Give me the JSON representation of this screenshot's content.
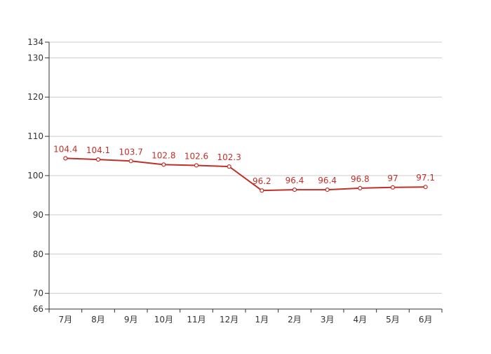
{
  "chart_data": {
    "type": "line",
    "categories": [
      "7月",
      "8月",
      "9月",
      "10月",
      "11月",
      "12月",
      "1月",
      "2月",
      "3月",
      "4月",
      "5月",
      "6月"
    ],
    "series": [
      {
        "values": [
          104.4,
          104.1,
          103.7,
          102.8,
          102.6,
          102.3,
          96.2,
          96.4,
          96.4,
          96.8,
          97,
          97.1
        ],
        "color": "#c0302a"
      }
    ],
    "y_ticks": [
      66,
      70,
      80,
      90,
      100,
      110,
      120,
      130,
      134
    ],
    "ylim": [
      66,
      134
    ],
    "grid": true,
    "data_labels": true,
    "legend": false,
    "title": "",
    "xlabel": "",
    "ylabel": ""
  }
}
